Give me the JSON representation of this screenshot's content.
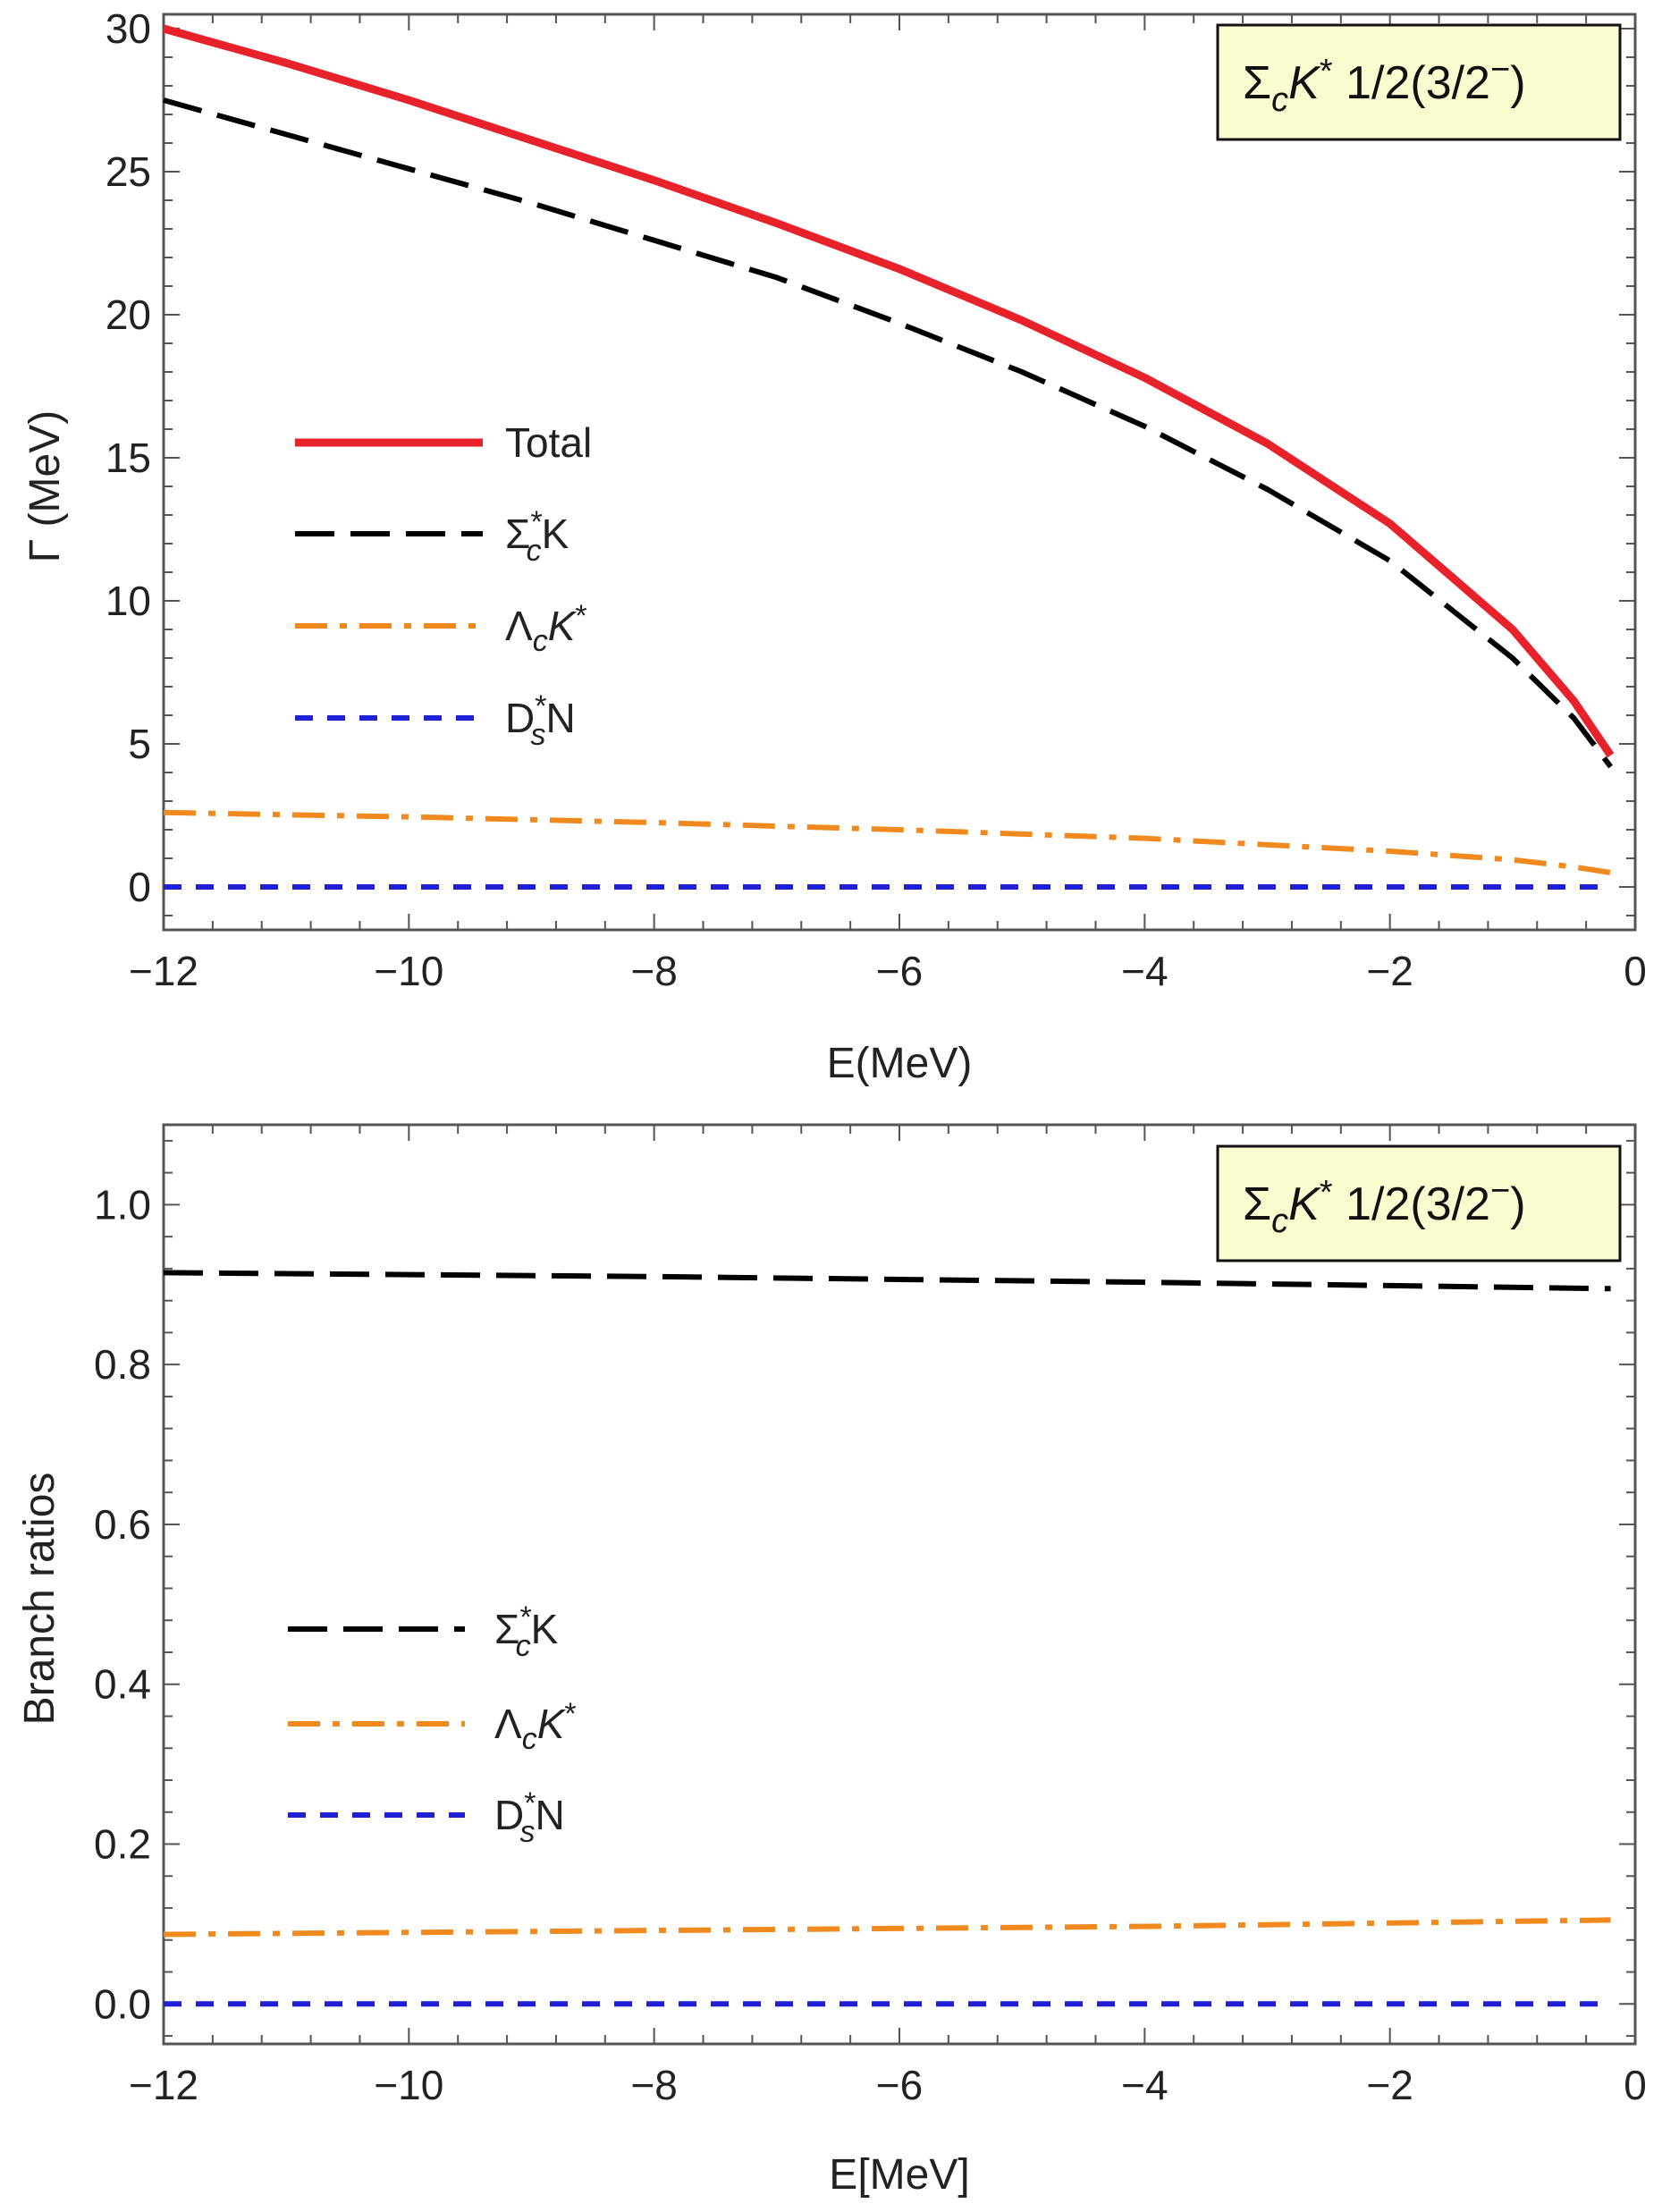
{
  "chart_data": [
    {
      "type": "line",
      "title": "",
      "annotation": {
        "main": "Σ",
        "sub": "c",
        "k": "K",
        "sup": "*",
        "rest": " 1/2(3/2",
        "minus": "−",
        "close": ")"
      },
      "xlabel": "E(MeV)",
      "ylabel": "Γ (MeV)",
      "xlim": [
        -12,
        0
      ],
      "ylim": [
        -1.5,
        30.5
      ],
      "xticks": [
        -12,
        -10,
        -8,
        -6,
        -4,
        -2,
        0
      ],
      "xtick_labels": [
        "−12",
        "−10",
        "−8",
        "−6",
        "−4",
        "−2",
        "0"
      ],
      "yticks": [
        0,
        5,
        10,
        15,
        20,
        25,
        30
      ],
      "ytick_labels": [
        "0",
        "5",
        "10",
        "15",
        "20",
        "25",
        "30"
      ],
      "grid": false,
      "legend_position": "left-middle",
      "series": [
        {
          "name": "Total",
          "color": "#e8222a",
          "dash": "solid",
          "x": [
            -12,
            -11,
            -10,
            -9,
            -8,
            -7,
            -6,
            -5,
            -4,
            -3,
            -2,
            -1,
            -0.5,
            -0.2
          ],
          "y": [
            30.0,
            28.8,
            27.5,
            26.1,
            24.7,
            23.2,
            21.6,
            19.8,
            17.8,
            15.5,
            12.7,
            9.0,
            6.5,
            4.6
          ]
        },
        {
          "name": "Σc*K",
          "label_parts": {
            "main": "Σ",
            "sup": "*",
            "sub": "c",
            "rest": "K"
          },
          "color": "#000000",
          "dash": "long",
          "x": [
            -12,
            -11,
            -10,
            -9,
            -8,
            -7,
            -6,
            -5,
            -4,
            -3,
            -2,
            -1,
            -0.5,
            -0.2
          ],
          "y": [
            27.5,
            26.3,
            25.1,
            23.9,
            22.6,
            21.3,
            19.7,
            18.0,
            16.1,
            13.9,
            11.4,
            8.0,
            5.9,
            4.2
          ]
        },
        {
          "name": "ΛcK*",
          "label_parts": {
            "main": "Λ",
            "sub": "c",
            "k": "K",
            "sup": "*"
          },
          "color": "#f08a1e",
          "dash": "dashdot",
          "x": [
            -12,
            -10,
            -8,
            -6,
            -4,
            -2,
            -1,
            -0.5,
            -0.2
          ],
          "y": [
            2.6,
            2.45,
            2.25,
            2.0,
            1.7,
            1.25,
            0.95,
            0.7,
            0.5
          ]
        },
        {
          "name": "Ds*N",
          "label_parts": {
            "main": "D",
            "sup": "*",
            "sub": "s",
            "rest": "N"
          },
          "color": "#1f1fd6",
          "dash": "short",
          "x": [
            -12,
            -0.2
          ],
          "y": [
            0.0,
            0.0
          ]
        }
      ]
    },
    {
      "type": "line",
      "title": "",
      "annotation": {
        "main": "Σ",
        "sub": "c",
        "k": "K",
        "sup": "*",
        "rest": " 1/2(3/2",
        "minus": "−",
        "close": ")"
      },
      "xlabel": "E[MeV]",
      "ylabel": "Branch ratios",
      "xlim": [
        -12,
        0
      ],
      "ylim": [
        -0.05,
        1.1
      ],
      "xticks": [
        -12,
        -10,
        -8,
        -6,
        -4,
        -2,
        0
      ],
      "xtick_labels": [
        "−12",
        "−10",
        "−8",
        "−6",
        "−4",
        "−2",
        "0"
      ],
      "yticks": [
        0.0,
        0.2,
        0.4,
        0.6,
        0.8,
        1.0
      ],
      "ytick_labels": [
        "0.0",
        "0.2",
        "0.4",
        "0.6",
        "0.8",
        "1.0"
      ],
      "grid": false,
      "legend_position": "left-lower",
      "series": [
        {
          "name": "Σc*K",
          "label_parts": {
            "main": "Σ",
            "sup": "*",
            "sub": "c",
            "rest": "K"
          },
          "color": "#000000",
          "dash": "long",
          "x": [
            -12,
            -8,
            -4,
            -0.2
          ],
          "y": [
            0.915,
            0.91,
            0.903,
            0.895
          ]
        },
        {
          "name": "ΛcK*",
          "label_parts": {
            "main": "Λ",
            "sub": "c",
            "k": "K",
            "sup": "*"
          },
          "color": "#f08a1e",
          "dash": "dashdot",
          "x": [
            -12,
            -8,
            -4,
            -0.2
          ],
          "y": [
            0.087,
            0.092,
            0.097,
            0.105
          ]
        },
        {
          "name": "Ds*N",
          "label_parts": {
            "main": "D",
            "sup": "*",
            "sub": "s",
            "rest": "N"
          },
          "color": "#1f1fd6",
          "dash": "short",
          "x": [
            -12,
            -0.2
          ],
          "y": [
            0.0,
            0.0
          ]
        }
      ]
    }
  ]
}
